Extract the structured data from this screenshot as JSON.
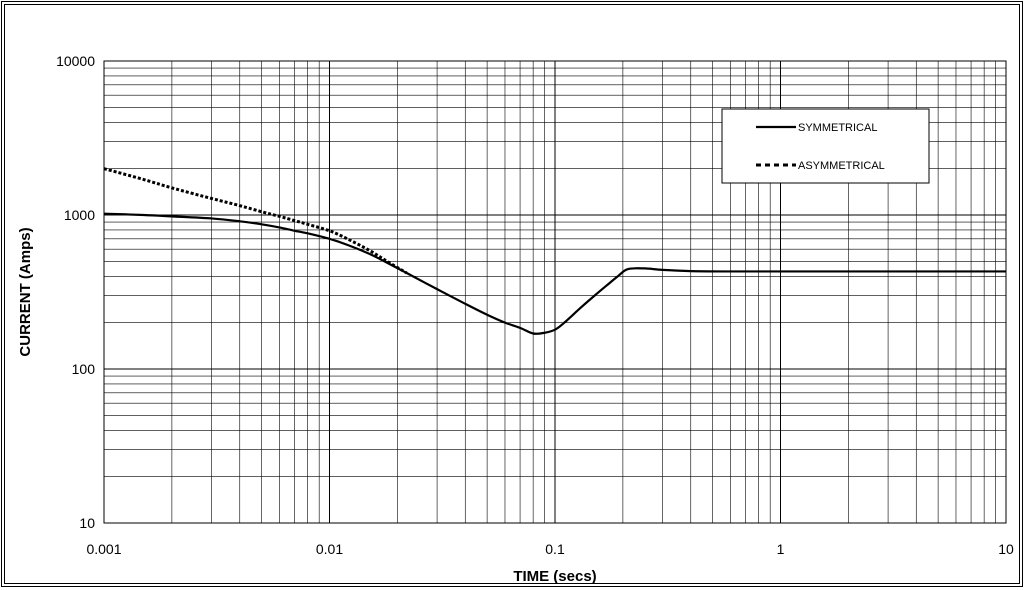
{
  "chart_data": {
    "type": "line",
    "title": "",
    "xlabel": "TIME (secs)",
    "ylabel": "CURRENT (Amps)",
    "x_scale": "log",
    "y_scale": "log",
    "xlim": [
      0.001,
      10
    ],
    "ylim": [
      10,
      10000
    ],
    "x_ticks": [
      0.001,
      0.01,
      0.1,
      1,
      10
    ],
    "x_tick_labels": [
      "0.001",
      "0.01",
      "0.1",
      "1",
      "10"
    ],
    "y_ticks": [
      10,
      100,
      1000,
      10000
    ],
    "y_tick_labels": [
      "10",
      "100",
      "1000",
      "10000"
    ],
    "grid": true,
    "legend_position": "top-right",
    "series": [
      {
        "name": "SYMMETRICAL",
        "style": "solid",
        "color": "#000000",
        "x": [
          0.001,
          0.0015,
          0.002,
          0.003,
          0.004,
          0.005,
          0.006,
          0.007,
          0.008,
          0.01,
          0.012,
          0.015,
          0.018,
          0.022,
          0.03,
          0.04,
          0.05,
          0.06,
          0.07,
          0.08,
          0.09,
          0.1,
          0.11,
          0.13,
          0.15,
          0.17,
          0.19,
          0.21,
          0.25,
          0.3,
          0.4,
          0.6,
          1,
          2,
          5,
          10
        ],
        "y": [
          1020,
          1000,
          980,
          950,
          910,
          870,
          830,
          790,
          760,
          700,
          640,
          560,
          490,
          420,
          330,
          265,
          225,
          200,
          185,
          170,
          172,
          180,
          200,
          250,
          300,
          350,
          400,
          445,
          450,
          440,
          432,
          430,
          430,
          430,
          430,
          430
        ]
      },
      {
        "name": "ASYMMETRICAL",
        "style": "dashed",
        "color": "#000000",
        "x": [
          0.001,
          0.0015,
          0.002,
          0.003,
          0.004,
          0.005,
          0.006,
          0.007,
          0.008,
          0.01,
          0.012,
          0.015,
          0.018,
          0.022
        ],
        "y": [
          2000,
          1700,
          1500,
          1280,
          1150,
          1050,
          980,
          920,
          870,
          790,
          700,
          590,
          500,
          420
        ]
      }
    ]
  }
}
